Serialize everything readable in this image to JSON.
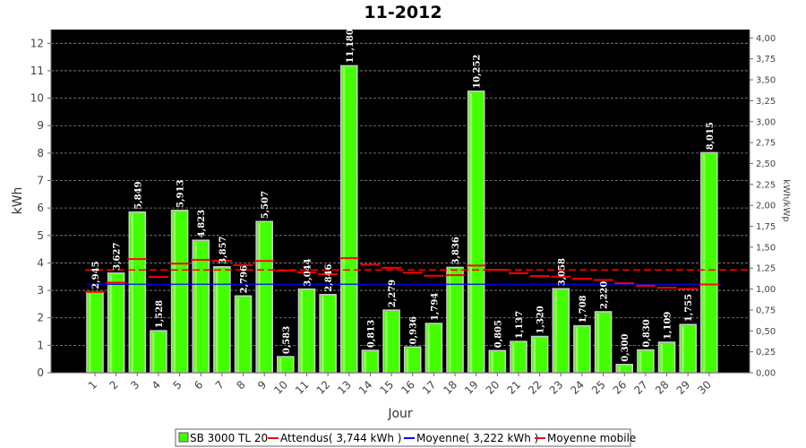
{
  "chart_data": {
    "type": "bar",
    "title": "11-2012",
    "xlabel": "Jour",
    "ylabel": "kWh",
    "ylabel_right": "kWh/kWp",
    "ylim": [
      0,
      12.5
    ],
    "ylim_right": [
      0,
      4.1
    ],
    "yticks": [
      "0",
      "1",
      "2",
      "3",
      "4",
      "5",
      "6",
      "7",
      "8",
      "9",
      "10",
      "11",
      "12"
    ],
    "yticks_right": [
      "0,00",
      "0,25",
      "0,50",
      "0,75",
      "1,00",
      "1,25",
      "1,50",
      "1,75",
      "2,00",
      "2,25",
      "2,50",
      "2,75",
      "3,00",
      "3,25",
      "3,50",
      "3,75",
      "4,00"
    ],
    "categories": [
      "1",
      "2",
      "3",
      "4",
      "5",
      "6",
      "7",
      "8",
      "9",
      "10",
      "11",
      "12",
      "13",
      "14",
      "15",
      "16",
      "17",
      "18",
      "19",
      "20",
      "21",
      "22",
      "23",
      "24",
      "25",
      "26",
      "27",
      "28",
      "29",
      "30"
    ],
    "series": [
      {
        "name": "SB 3000 TL 20",
        "kind": "bar",
        "color": "#44ff00",
        "values": [
          2.945,
          3.627,
          5.849,
          1.528,
          5.913,
          4.823,
          3.857,
          2.796,
          5.507,
          0.583,
          3.044,
          2.846,
          11.18,
          0.813,
          2.279,
          0.936,
          1.794,
          3.836,
          10.252,
          0.805,
          1.137,
          1.32,
          3.058,
          1.708,
          2.22,
          0.3,
          0.83,
          1.109,
          1.755,
          8.015
        ],
        "labels": [
          "2,945",
          "3,627",
          "5,849",
          "1,528",
          "5,913",
          "4,823",
          "3,857",
          "2,796",
          "5,507",
          "0,583",
          "3,044",
          "2,846",
          "11,180",
          "0,813",
          "2,279",
          "0,936",
          "1,794",
          "3,836",
          "10,252",
          "0,805",
          "1,137",
          "1,320",
          "3,058",
          "1,708",
          "2,220",
          "0,300",
          "0,830",
          "1,109",
          "1,755",
          "8,015"
        ]
      },
      {
        "name": "Attendus( 3,744 kWh )",
        "kind": "dashed-line",
        "color": "#ff0000",
        "value": 3.744
      },
      {
        "name": "Moyenne( 3,222 kWh )",
        "kind": "line",
        "color": "#0000ff",
        "value": 3.222
      },
      {
        "name": "Moyenne mobile",
        "kind": "step",
        "color": "#ff0000",
        "values": [
          2.945,
          3.286,
          4.14,
          3.487,
          3.972,
          4.114,
          4.077,
          3.917,
          4.07,
          3.72,
          3.659,
          3.591,
          4.175,
          3.935,
          3.824,
          3.644,
          3.535,
          3.553,
          3.906,
          3.751,
          3.626,
          3.521,
          3.501,
          3.426,
          3.378,
          3.26,
          3.17,
          3.097,
          3.051,
          3.216
        ]
      }
    ],
    "grid": true,
    "legend": "bottom"
  }
}
